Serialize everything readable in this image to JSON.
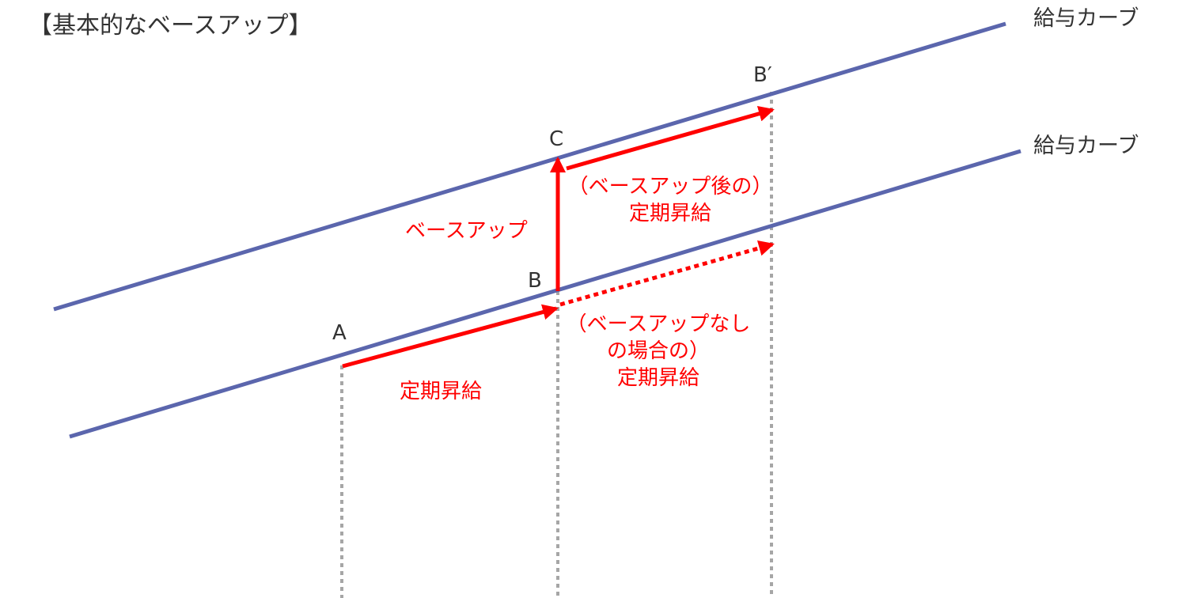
{
  "title": "【基本的なベースアップ】",
  "curves": {
    "upper_label": "給与カーブ",
    "lower_label": "給与カーブ"
  },
  "points": {
    "a": "A",
    "b": "B",
    "c": "C",
    "b_prime": "B′"
  },
  "annotations": {
    "regular_raise": "定期昇給",
    "base_up": "ベースアップ",
    "after_base_up_line1": "（ベースアップ後の）",
    "after_base_up_line2": "定期昇給",
    "without_base_up_line1": "（ベースアップなし",
    "without_base_up_line2": "の場合の）",
    "without_base_up_line3": "定期昇給"
  },
  "colors": {
    "curve": "#5b66ad",
    "arrow": "#ff0000",
    "guide": "#a6a6a6",
    "text": "#333333"
  }
}
